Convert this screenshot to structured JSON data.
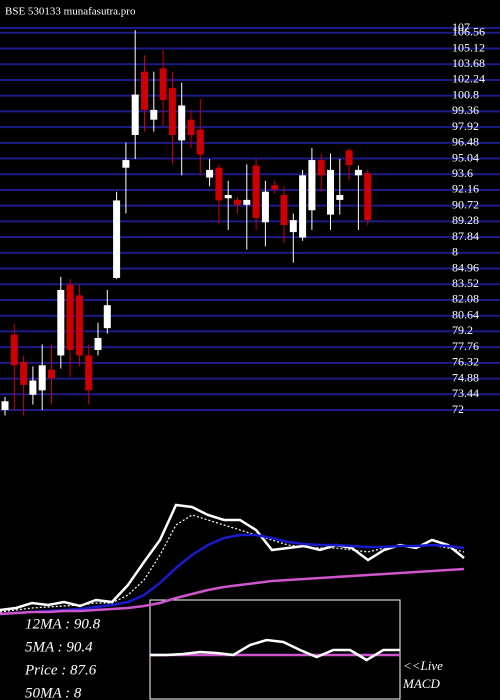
{
  "chart_data": [
    {
      "type": "candlestick",
      "title": "BSE 530133 munafasutra.pro",
      "up_color": "#ffffff",
      "down_color": "#cc0000",
      "grid": true,
      "grid_color": "#1c1c88",
      "ylim": [
        72,
        107
      ],
      "yticks": [
        107,
        106.56,
        105.12,
        103.68,
        102.24,
        100.8,
        99.36,
        97.92,
        96.48,
        95.04,
        93.6,
        92.16,
        90.72,
        89.28,
        87.84,
        {
          "value": 86.4,
          "label": "8"
        },
        84.96,
        83.52,
        82.08,
        80.64,
        79.2,
        77.76,
        76.32,
        74.88,
        73.44,
        72
      ],
      "open": [
        72.0,
        78.9,
        76.4,
        73.4,
        73.8,
        75.7,
        77,
        83.5,
        82.5,
        77,
        77.5,
        79.5,
        84.1,
        94.2,
        97.2,
        103,
        98.6,
        103.3,
        101.5,
        96.7,
        98.6,
        97.7,
        93.3,
        94.2,
        91.4,
        91.25,
        90.8,
        94.4,
        89.2,
        92.6,
        91.7,
        88.3,
        87.8,
        90.3,
        94.9,
        89.9,
        91.25,
        95.8,
        93.5,
        93.7
      ],
      "high": [
        73.2,
        79.9,
        77,
        76,
        78,
        78,
        84.2,
        84,
        83.5,
        78,
        80,
        83,
        92,
        96.5,
        106.8,
        104.5,
        103,
        105,
        103,
        102,
        99.5,
        100.5,
        95,
        94.5,
        93,
        91.5,
        94.5,
        95,
        93,
        93,
        92.5,
        90,
        94,
        96,
        95.5,
        95.5,
        95,
        96,
        94.4,
        94
      ],
      "low": [
        71.5,
        72,
        71.5,
        72.5,
        72,
        72.5,
        75.8,
        75,
        76,
        72.5,
        77,
        79,
        84,
        90,
        95,
        97.5,
        97.5,
        98,
        94.5,
        93.5,
        96,
        93.5,
        92.5,
        89,
        88.5,
        90,
        86.7,
        88.5,
        87,
        91.8,
        87.3,
        85.5,
        87.5,
        88.5,
        92,
        88.5,
        89.9,
        93,
        88.5,
        88.9
      ],
      "close": [
        72.8,
        76.1,
        74.3,
        74.7,
        76.1,
        74.9,
        83,
        77.5,
        77,
        73.8,
        78.6,
        81.6,
        91.2,
        94.9,
        100.9,
        99.5,
        99.5,
        100.4,
        97.2,
        99.9,
        97.2,
        95.4,
        94,
        91.2,
        91.7,
        90.8,
        91.25,
        89.6,
        92,
        92.2,
        88.95,
        89.4,
        93.5,
        94.9,
        93.5,
        94,
        91.7,
        94.45,
        94,
        89.4
      ]
    },
    {
      "type": "line",
      "ylim": [
        70,
        105
      ],
      "annotations": [
        "12MA : 90.8",
        "5MA : 90.4",
        "Price  : 87.6",
        "50MA : 8"
      ],
      "series": [
        {
          "color": "#ffffff",
          "values": [
            71,
            71.4,
            72.4,
            72,
            72.6,
            71.8,
            73,
            72.6,
            76,
            80.6,
            85,
            92,
            91.6,
            90,
            89,
            89,
            87,
            83,
            83.4,
            83.8,
            83,
            84,
            83.4,
            81,
            83,
            84,
            83.4,
            85,
            84,
            81.4
          ]
        },
        {
          "color": "#ffffff",
          "dash": true,
          "values": [
            70.6,
            71,
            71.4,
            71.6,
            71.8,
            72,
            72.4,
            72.4,
            74,
            77,
            82,
            88,
            90,
            89,
            88,
            87,
            86,
            85,
            84,
            83.6,
            83.4,
            83.4,
            83,
            82.6,
            83.4,
            83.8,
            83.8,
            84,
            83.4,
            82.6
          ]
        },
        {
          "color": "#1a1acc",
          "values": [
            70.2,
            70.4,
            70.6,
            70.8,
            71,
            71.2,
            71.6,
            72,
            72.6,
            74,
            76.4,
            79.4,
            82,
            84,
            85.4,
            86,
            86,
            85.4,
            84.6,
            84.2,
            84,
            84,
            83.8,
            83.6,
            83.6,
            83.8,
            83.8,
            84,
            83.8,
            83.4
          ]
        },
        {
          "color": "#cc55cc",
          "values": [
            70.2,
            70.4,
            70.6,
            70.6,
            70.8,
            70.8,
            71,
            71.2,
            71.4,
            71.8,
            72.4,
            73.4,
            74.2,
            75,
            75.6,
            76,
            76.4,
            76.8,
            77,
            77.2,
            77.4,
            77.6,
            77.8,
            78,
            78.2,
            78.4,
            78.6,
            78.8,
            79,
            79.2
          ]
        }
      ]
    },
    {
      "type": "line",
      "ylim": [
        -2.5,
        2.5
      ],
      "annotations": [
        "<<Live",
        "MACD"
      ],
      "series": [
        {
          "color": "#cc55cc",
          "values": [
            -0.25,
            -0.25,
            -0.25,
            -0.25,
            -0.25,
            -0.25,
            -0.25,
            -0.25,
            -0.25,
            -0.25,
            -0.25,
            -0.25,
            -0.25,
            -0.25,
            -0.25,
            -0.25
          ]
        },
        {
          "color": "#ffffff",
          "values": [
            -0.25,
            -0.25,
            -0.2,
            -0.1,
            -0.15,
            -0.25,
            0.25,
            0.5,
            0.4,
            0,
            -0.35,
            0,
            0,
            -0.5,
            0,
            0
          ]
        }
      ]
    }
  ]
}
